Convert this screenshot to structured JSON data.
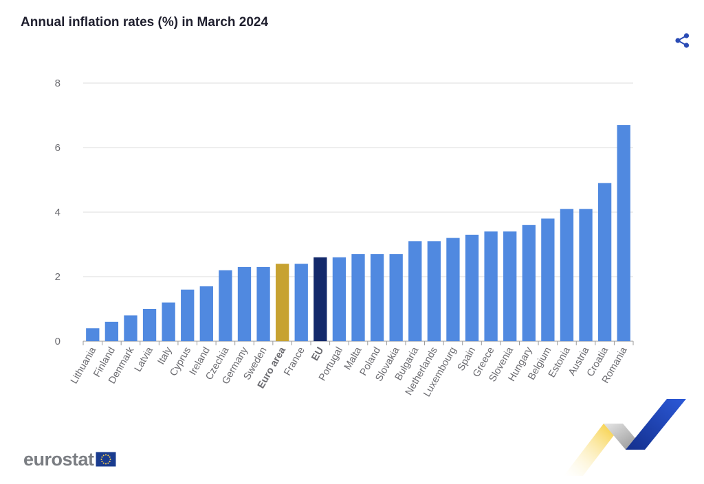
{
  "header": {
    "title": "Annual inflation rates (%) in March 2024"
  },
  "icons": {
    "share": "share-icon"
  },
  "logo": {
    "text": "eurostat",
    "flag_icon": "eu-flag-icon"
  },
  "colors": {
    "bar_default": "#5089e0",
    "bar_euro_area": "#c7a231",
    "bar_eu": "#13296b",
    "share_icon": "#2a4bb5"
  },
  "chart_data": {
    "type": "bar",
    "title": "Annual inflation rates (%) in March 2024",
    "xlabel": "",
    "ylabel": "",
    "ylim": [
      0,
      8
    ],
    "yticks": [
      0,
      2,
      4,
      6,
      8
    ],
    "grid": true,
    "categories": [
      "Lithuania",
      "Finland",
      "Denmark",
      "Latvia",
      "Italy",
      "Cyprus",
      "Ireland",
      "Czechia",
      "Germany",
      "Sweden",
      "Euro area",
      "France",
      "EU",
      "Portugal",
      "Malta",
      "Poland",
      "Slovakia",
      "Bulgaria",
      "Netherlands",
      "Luxembourg",
      "Spain",
      "Greece",
      "Slovenia",
      "Hungary",
      "Belgium",
      "Estonia",
      "Austria",
      "Croatia",
      "Romania"
    ],
    "values": [
      0.4,
      0.6,
      0.8,
      1.0,
      1.2,
      1.6,
      1.7,
      2.2,
      2.3,
      2.3,
      2.4,
      2.4,
      2.6,
      2.6,
      2.7,
      2.7,
      2.7,
      3.1,
      3.1,
      3.2,
      3.3,
      3.4,
      3.4,
      3.6,
      3.8,
      4.1,
      4.1,
      4.9,
      6.7
    ],
    "highlighted": {
      "Euro area": "#c7a231",
      "EU": "#13296b"
    },
    "bold_labels": [
      "Euro area",
      "EU"
    ]
  }
}
